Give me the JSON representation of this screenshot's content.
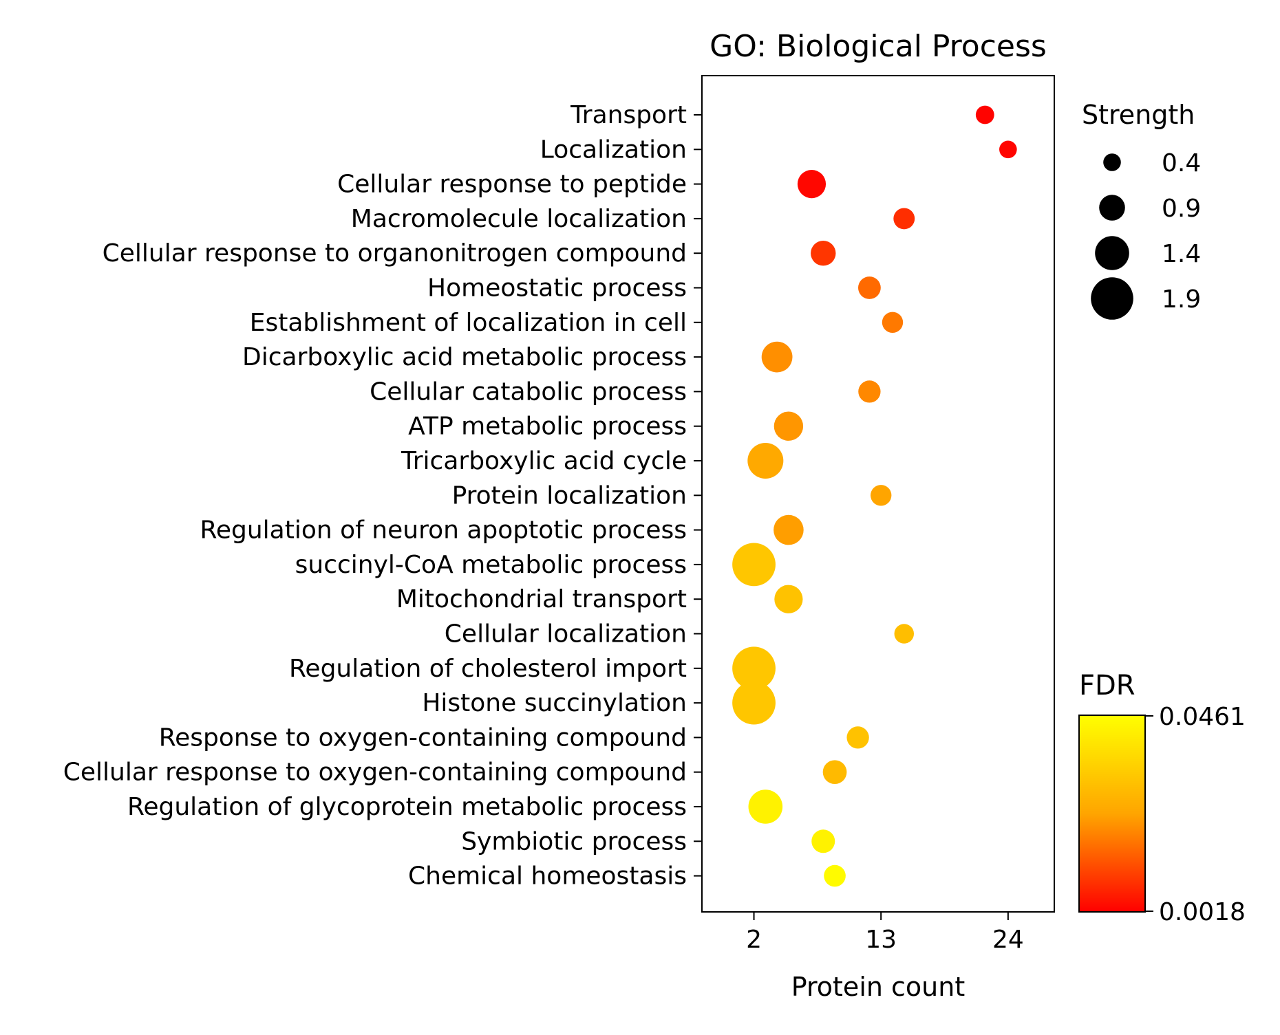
{
  "chart_data": {
    "type": "scatter",
    "title": "GO: Biological Process",
    "xlabel": "Protein count",
    "ylabel": "",
    "xticks": [
      2,
      13,
      24
    ],
    "xlim": [
      -2.5,
      28
    ],
    "grid": false,
    "categories": [
      "Transport",
      "Localization",
      "Cellular response to peptide",
      "Macromolecule localization",
      "Cellular response to organonitrogen compound",
      "Homeostatic process",
      "Establishment of localization in cell",
      "Dicarboxylic acid metabolic process",
      "Cellular catabolic process",
      "ATP metabolic process",
      "Tricarboxylic acid cycle",
      "Protein localization",
      "Regulation of neuron apoptotic process",
      "succinyl-CoA metabolic process",
      "Mitochondrial transport",
      "Cellular localization",
      "Regulation of cholesterol import",
      "Histone succinylation",
      "Response to oxygen-containing compound",
      "Cellular response to oxygen-containing compound",
      "Regulation of glycoprotein metabolic process",
      "Symbiotic process",
      "Chemical homeostasis"
    ],
    "protein_count": [
      22,
      24,
      7,
      15,
      8,
      12,
      14,
      4,
      12,
      5,
      3,
      13,
      5,
      2,
      5,
      15,
      2,
      2,
      11,
      9,
      3,
      8,
      9
    ],
    "strength": [
      0.45,
      0.4,
      1.05,
      0.62,
      0.85,
      0.7,
      0.6,
      1.2,
      0.68,
      1.1,
      1.5,
      0.6,
      1.15,
      1.95,
      1.05,
      0.52,
      1.95,
      1.95,
      0.68,
      0.78,
      1.4,
      0.75,
      0.65
    ],
    "fdr": [
      0.0022,
      0.0025,
      0.0028,
      0.008,
      0.009,
      0.016,
      0.018,
      0.021,
      0.02,
      0.022,
      0.025,
      0.024,
      0.023,
      0.032,
      0.031,
      0.03,
      0.032,
      0.032,
      0.031,
      0.029,
      0.043,
      0.043,
      0.045
    ],
    "size_legend": {
      "title": "Strength",
      "values": [
        0.4,
        0.9,
        1.4,
        1.9
      ],
      "labels": [
        "0.4",
        "0.9",
        "1.4",
        "1.9"
      ]
    },
    "colorbar": {
      "title": "FDR",
      "min_label": "0.0018",
      "max_label": "0.0461",
      "min": 0.0018,
      "max": 0.0461,
      "low_color": "#ff0000",
      "mid_color": "#ffa500",
      "high_color": "#ffff00"
    },
    "legend_position": "right"
  }
}
